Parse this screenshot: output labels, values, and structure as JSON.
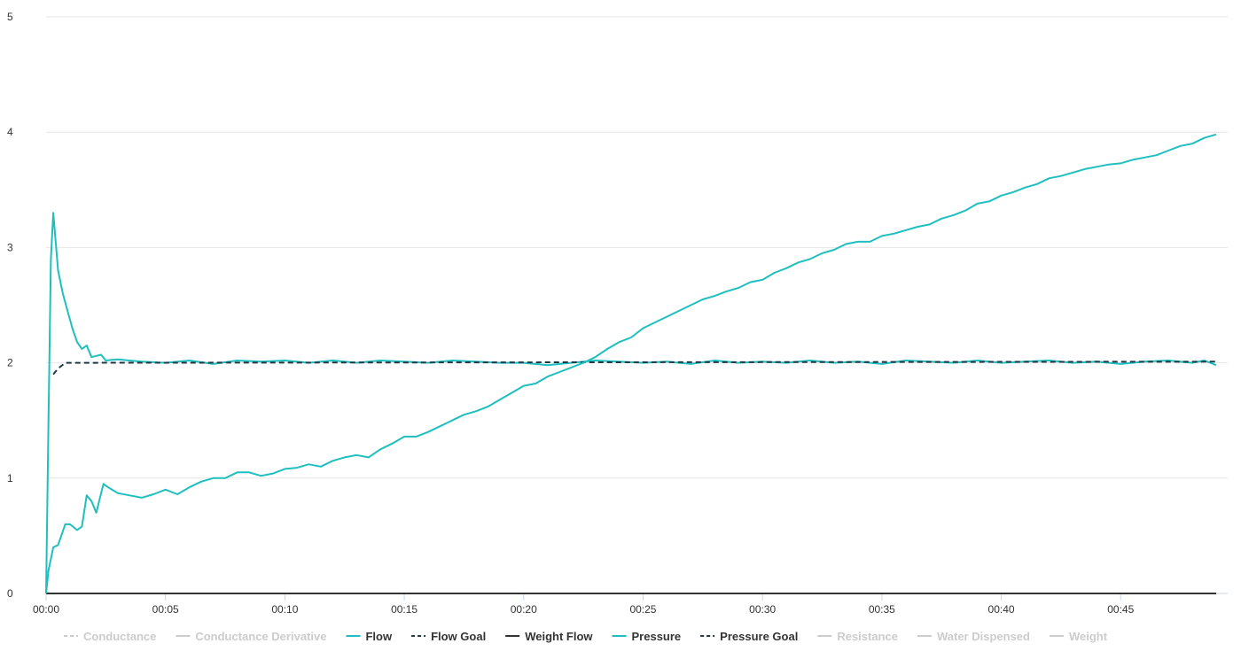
{
  "chart_data": {
    "type": "line",
    "title": "",
    "xlabel": "",
    "ylabel": "",
    "x_unit": "seconds",
    "xlim": [
      0,
      49
    ],
    "ylim": [
      0,
      5
    ],
    "y_ticks": [
      0,
      1,
      2,
      3,
      4,
      5
    ],
    "x_ticks": [
      {
        "t": 0,
        "label": "00:00"
      },
      {
        "t": 5,
        "label": "00:05"
      },
      {
        "t": 10,
        "label": "00:10"
      },
      {
        "t": 15,
        "label": "00:15"
      },
      {
        "t": 20,
        "label": "00:20"
      },
      {
        "t": 25,
        "label": "00:25"
      },
      {
        "t": 30,
        "label": "00:30"
      },
      {
        "t": 35,
        "label": "00:35"
      },
      {
        "t": 40,
        "label": "00:40"
      },
      {
        "t": 45,
        "label": "00:45"
      }
    ],
    "grid": "horizontal",
    "legend_position": "bottom",
    "series": [
      {
        "name": "Conductance",
        "color": "#cccccc",
        "dash": "dashdot",
        "visible": false,
        "points": []
      },
      {
        "name": "Conductance Derivative",
        "color": "#cccccc",
        "dash": "solid",
        "visible": false,
        "points": []
      },
      {
        "name": "Flow",
        "color": "#1fbfbf",
        "dash": "solid",
        "visible": true,
        "points": [
          [
            0,
            0
          ],
          [
            0.1,
            1.5
          ],
          [
            0.2,
            2.9
          ],
          [
            0.3,
            3.3
          ],
          [
            0.5,
            2.8
          ],
          [
            0.7,
            2.6
          ],
          [
            0.9,
            2.45
          ],
          [
            1.1,
            2.3
          ],
          [
            1.3,
            2.18
          ],
          [
            1.5,
            2.12
          ],
          [
            1.7,
            2.15
          ],
          [
            1.9,
            2.05
          ],
          [
            2.1,
            2.06
          ],
          [
            2.3,
            2.07
          ],
          [
            2.5,
            2.02
          ],
          [
            3,
            2.03
          ],
          [
            4,
            2.01
          ],
          [
            5,
            2.0
          ],
          [
            6,
            2.02
          ],
          [
            7,
            1.99
          ],
          [
            8,
            2.02
          ],
          [
            9,
            2.01
          ],
          [
            10,
            2.02
          ],
          [
            11,
            2.0
          ],
          [
            12,
            2.02
          ],
          [
            13,
            2.0
          ],
          [
            14,
            2.02
          ],
          [
            15,
            2.01
          ],
          [
            16,
            2.0
          ],
          [
            17,
            2.02
          ],
          [
            18,
            2.01
          ],
          [
            19,
            2.0
          ],
          [
            20,
            2.0
          ],
          [
            21,
            1.98
          ],
          [
            22,
            2.0
          ],
          [
            23,
            2.02
          ],
          [
            24,
            2.01
          ],
          [
            25,
            2.0
          ],
          [
            26,
            2.01
          ],
          [
            27,
            1.99
          ],
          [
            28,
            2.02
          ],
          [
            29,
            2.0
          ],
          [
            30,
            2.01
          ],
          [
            31,
            2.0
          ],
          [
            32,
            2.02
          ],
          [
            33,
            2.0
          ],
          [
            34,
            2.01
          ],
          [
            35,
            1.99
          ],
          [
            36,
            2.02
          ],
          [
            37,
            2.01
          ],
          [
            38,
            2.0
          ],
          [
            39,
            2.02
          ],
          [
            40,
            2.0
          ],
          [
            41,
            2.01
          ],
          [
            42,
            2.02
          ],
          [
            43,
            2.0
          ],
          [
            44,
            2.01
          ],
          [
            45,
            1.99
          ],
          [
            46,
            2.01
          ],
          [
            47,
            2.02
          ],
          [
            48,
            2.0
          ],
          [
            48.5,
            2.02
          ],
          [
            49,
            1.98
          ]
        ]
      },
      {
        "name": "Flow Goal",
        "color": "#1f3a46",
        "dash": "dashdot",
        "visible": true,
        "points": [
          [
            0.3,
            1.9
          ],
          [
            0.5,
            1.95
          ],
          [
            0.8,
            2.0
          ],
          [
            49,
            2.01
          ]
        ]
      },
      {
        "name": "Weight Flow",
        "color": "#333333",
        "dash": "solid",
        "visible": true,
        "points": [
          [
            0,
            0
          ],
          [
            49,
            0
          ]
        ]
      },
      {
        "name": "Pressure",
        "color": "#1fbfbf",
        "dash": "solid",
        "visible": true,
        "points": [
          [
            0,
            0
          ],
          [
            0.1,
            0.2
          ],
          [
            0.3,
            0.4
          ],
          [
            0.5,
            0.42
          ],
          [
            0.8,
            0.6
          ],
          [
            1,
            0.6
          ],
          [
            1.3,
            0.55
          ],
          [
            1.5,
            0.58
          ],
          [
            1.7,
            0.85
          ],
          [
            1.9,
            0.8
          ],
          [
            2.1,
            0.7
          ],
          [
            2.4,
            0.95
          ],
          [
            2.6,
            0.92
          ],
          [
            3,
            0.87
          ],
          [
            3.5,
            0.85
          ],
          [
            4,
            0.83
          ],
          [
            4.5,
            0.86
          ],
          [
            5,
            0.9
          ],
          [
            5.5,
            0.86
          ],
          [
            6,
            0.92
          ],
          [
            6.5,
            0.97
          ],
          [
            7,
            1.0
          ],
          [
            7.5,
            1.0
          ],
          [
            8,
            1.05
          ],
          [
            8.5,
            1.05
          ],
          [
            9,
            1.02
          ],
          [
            9.5,
            1.04
          ],
          [
            10,
            1.08
          ],
          [
            10.5,
            1.09
          ],
          [
            11,
            1.12
          ],
          [
            11.5,
            1.1
          ],
          [
            12,
            1.15
          ],
          [
            12.5,
            1.18
          ],
          [
            13,
            1.2
          ],
          [
            13.5,
            1.18
          ],
          [
            14,
            1.25
          ],
          [
            14.5,
            1.3
          ],
          [
            15,
            1.36
          ],
          [
            15.5,
            1.36
          ],
          [
            16,
            1.4
          ],
          [
            16.5,
            1.45
          ],
          [
            17,
            1.5
          ],
          [
            17.5,
            1.55
          ],
          [
            18,
            1.58
          ],
          [
            18.5,
            1.62
          ],
          [
            19,
            1.68
          ],
          [
            19.5,
            1.74
          ],
          [
            20,
            1.8
          ],
          [
            20.5,
            1.82
          ],
          [
            21,
            1.88
          ],
          [
            21.5,
            1.92
          ],
          [
            22,
            1.96
          ],
          [
            22.5,
            2.0
          ],
          [
            23,
            2.05
          ],
          [
            23.5,
            2.12
          ],
          [
            24,
            2.18
          ],
          [
            24.5,
            2.22
          ],
          [
            25,
            2.3
          ],
          [
            25.5,
            2.35
          ],
          [
            26,
            2.4
          ],
          [
            26.5,
            2.45
          ],
          [
            27,
            2.5
          ],
          [
            27.5,
            2.55
          ],
          [
            28,
            2.58
          ],
          [
            28.5,
            2.62
          ],
          [
            29,
            2.65
          ],
          [
            29.5,
            2.7
          ],
          [
            30,
            2.72
          ],
          [
            30.5,
            2.78
          ],
          [
            31,
            2.82
          ],
          [
            31.5,
            2.87
          ],
          [
            32,
            2.9
          ],
          [
            32.5,
            2.95
          ],
          [
            33,
            2.98
          ],
          [
            33.5,
            3.03
          ],
          [
            34,
            3.05
          ],
          [
            34.5,
            3.05
          ],
          [
            35,
            3.1
          ],
          [
            35.5,
            3.12
          ],
          [
            36,
            3.15
          ],
          [
            36.5,
            3.18
          ],
          [
            37,
            3.2
          ],
          [
            37.5,
            3.25
          ],
          [
            38,
            3.28
          ],
          [
            38.5,
            3.32
          ],
          [
            39,
            3.38
          ],
          [
            39.5,
            3.4
          ],
          [
            40,
            3.45
          ],
          [
            40.5,
            3.48
          ],
          [
            41,
            3.52
          ],
          [
            41.5,
            3.55
          ],
          [
            42,
            3.6
          ],
          [
            42.5,
            3.62
          ],
          [
            43,
            3.65
          ],
          [
            43.5,
            3.68
          ],
          [
            44,
            3.7
          ],
          [
            44.5,
            3.72
          ],
          [
            45,
            3.73
          ],
          [
            45.5,
            3.76
          ],
          [
            46,
            3.78
          ],
          [
            46.5,
            3.8
          ],
          [
            47,
            3.84
          ],
          [
            47.5,
            3.88
          ],
          [
            48,
            3.9
          ],
          [
            48.5,
            3.95
          ],
          [
            49,
            3.98
          ]
        ]
      },
      {
        "name": "Pressure Goal",
        "color": "#1f3a46",
        "dash": "dashdot",
        "visible": true,
        "points": []
      },
      {
        "name": "Resistance",
        "color": "#cccccc",
        "dash": "solid",
        "visible": false,
        "points": []
      },
      {
        "name": "Water Dispensed",
        "color": "#cccccc",
        "dash": "solid",
        "visible": false,
        "points": []
      },
      {
        "name": "Weight",
        "color": "#cccccc",
        "dash": "solid",
        "visible": false,
        "points": []
      }
    ]
  }
}
